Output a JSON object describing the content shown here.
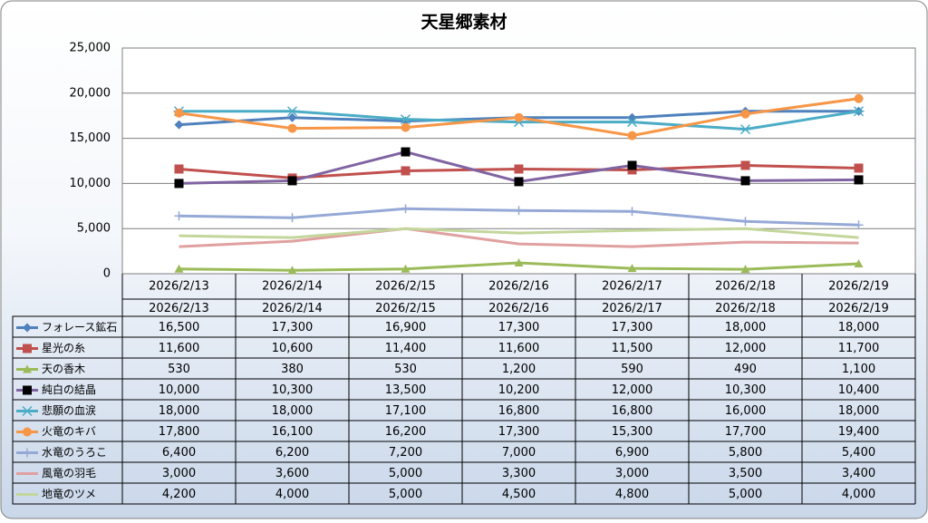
{
  "chart_data": {
    "type": "line",
    "title": "天星郷素材",
    "categories": [
      "2026/2/13",
      "2026/2/14",
      "2026/2/15",
      "2026/2/16",
      "2026/2/17",
      "2026/2/18",
      "2026/2/19"
    ],
    "ylim": [
      0,
      25000
    ],
    "yticks": [
      0,
      {
        "value": 5000,
        "label": "5,000"
      },
      {
        "value": 10000,
        "label": "10,000"
      },
      {
        "value": 15000,
        "label": "15,000"
      },
      {
        "value": 20000,
        "label": "20,000"
      },
      {
        "value": 25000,
        "label": "25,000"
      }
    ],
    "grid": true,
    "series": [
      {
        "name": "フォレース鉱石",
        "color": "#4f81bd",
        "marker": "diamond",
        "values": [
          16500,
          17300,
          16900,
          17300,
          17300,
          18000,
          18000
        ],
        "value_labels": [
          "16,500",
          "17,300",
          "16,900",
          "17,300",
          "17,300",
          "18,000",
          "18,000"
        ]
      },
      {
        "name": "星光の糸",
        "color": "#c0504d",
        "marker": "square",
        "values": [
          11600,
          10600,
          11400,
          11600,
          11500,
          12000,
          11700
        ],
        "value_labels": [
          "11,600",
          "10,600",
          "11,400",
          "11,600",
          "11,500",
          "12,000",
          "11,700"
        ]
      },
      {
        "name": "天の香木",
        "color": "#9bbb59",
        "marker": "triangle",
        "values": [
          530,
          380,
          530,
          1200,
          590,
          490,
          1100
        ],
        "value_labels": [
          "530",
          "380",
          "530",
          "1,200",
          "590",
          "490",
          "1,100"
        ]
      },
      {
        "name": "純白の結晶",
        "color": "#8064a2",
        "marker": "square",
        "marker_color": "#000000",
        "values": [
          10000,
          10300,
          13500,
          10200,
          12000,
          10300,
          10400
        ],
        "value_labels": [
          "10,000",
          "10,300",
          "13,500",
          "10,200",
          "12,000",
          "10,300",
          "10,400"
        ]
      },
      {
        "name": "悲願の血涙",
        "color": "#4bacc6",
        "marker": "star",
        "values": [
          18000,
          18000,
          17100,
          16800,
          16800,
          16000,
          18000
        ],
        "value_labels": [
          "18,000",
          "18,000",
          "17,100",
          "16,800",
          "16,800",
          "16,000",
          "18,000"
        ]
      },
      {
        "name": "火竜のキバ",
        "color": "#f79646",
        "marker": "circle",
        "values": [
          17800,
          16100,
          16200,
          17300,
          15300,
          17700,
          19400
        ],
        "value_labels": [
          "17,800",
          "16,100",
          "16,200",
          "17,300",
          "15,300",
          "17,700",
          "19,400"
        ]
      },
      {
        "name": "水竜のうろこ",
        "color": "#95a9d6",
        "marker": "plus",
        "values": [
          6400,
          6200,
          7200,
          7000,
          6900,
          5800,
          5400
        ],
        "value_labels": [
          "6,400",
          "6,200",
          "7,200",
          "7,000",
          "6,900",
          "5,800",
          "5,400"
        ]
      },
      {
        "name": "風竜の羽毛",
        "color": "#e0a0a0",
        "marker": "none",
        "values": [
          3000,
          3600,
          5000,
          3300,
          3000,
          3500,
          3400
        ],
        "value_labels": [
          "3,000",
          "3,600",
          "5,000",
          "3,300",
          "3,000",
          "3,500",
          "3,400"
        ]
      },
      {
        "name": "地竜のツメ",
        "color": "#c3d69b",
        "marker": "none",
        "values": [
          4200,
          4000,
          5000,
          4500,
          4800,
          5000,
          4000
        ],
        "value_labels": [
          "4,200",
          "4,000",
          "5,000",
          "4,500",
          "4,800",
          "5,000",
          "4,000"
        ]
      }
    ]
  }
}
